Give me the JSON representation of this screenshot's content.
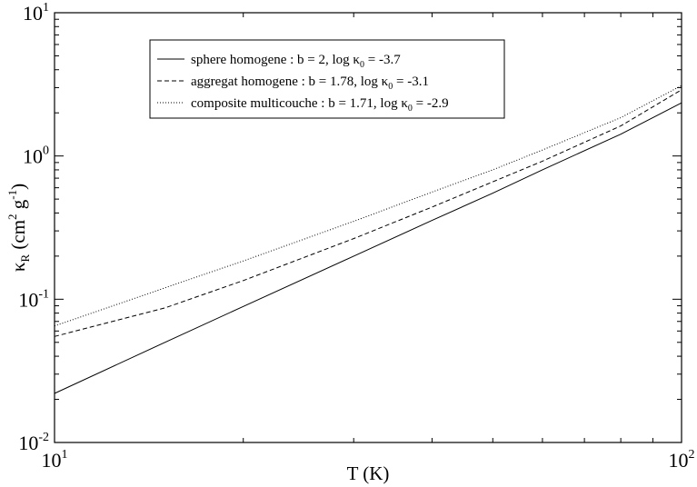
{
  "chart_data": {
    "type": "line",
    "x_scale": "log",
    "y_scale": "log",
    "xlim": [
      10,
      100
    ],
    "ylim": [
      0.01,
      10
    ],
    "xlabel": "T (K)",
    "ylabel": "κR (cm2 g-1)",
    "x_ticks": [
      {
        "value": 10,
        "base": "10",
        "exp": "1"
      },
      {
        "value": 100,
        "base": "10",
        "exp": "2"
      }
    ],
    "y_ticks": [
      {
        "value": 0.01,
        "base": "10",
        "exp": "-2"
      },
      {
        "value": 0.1,
        "base": "10",
        "exp": "-1"
      },
      {
        "value": 1,
        "base": "10",
        "exp": "0"
      },
      {
        "value": 10,
        "base": "10",
        "exp": "1"
      }
    ],
    "grid": false,
    "legend_position": "top-left",
    "series": [
      {
        "name": "sphere homogene : b = 2, log κ0 = -3.7",
        "style": "solid",
        "x": [
          10,
          15,
          20,
          30,
          40,
          50,
          60,
          80,
          100
        ],
        "y": [
          0.022,
          0.05,
          0.089,
          0.2,
          0.355,
          0.55,
          0.8,
          1.42,
          2.35
        ]
      },
      {
        "name": "aggregat homogene : b = 1.78, log κ0 = -3.1",
        "style": "dashed",
        "x": [
          10,
          15,
          20,
          30,
          40,
          50,
          60,
          80,
          100
        ],
        "y": [
          0.055,
          0.087,
          0.135,
          0.265,
          0.44,
          0.66,
          0.92,
          1.62,
          2.9
        ]
      },
      {
        "name": "composite multicouche : b = 1.71, log κ0 = -2.9",
        "style": "dotted",
        "x": [
          10,
          15,
          20,
          30,
          40,
          50,
          60,
          80,
          100
        ],
        "y": [
          0.065,
          0.12,
          0.185,
          0.35,
          0.56,
          0.8,
          1.1,
          1.85,
          3.1
        ]
      }
    ]
  },
  "legend": {
    "entries": [
      {
        "text": "sphere homogene : b = 2, log κ",
        "sub": "0",
        "tail": " = -3.7"
      },
      {
        "text": "aggregat homogene :  b = 1.78, log κ",
        "sub": "0",
        "tail": " = -3.1"
      },
      {
        "text": "composite multicouche :  b = 1.71, log κ",
        "sub": "0",
        "tail": " = -2.9"
      }
    ]
  },
  "labels": {
    "xlabel": "T (K)",
    "ylabel_kappa": "κ",
    "ylabel_sub": "R",
    "ylabel_open": " (cm",
    "ylabel_exp1": "2",
    "ylabel_mid": " g",
    "ylabel_exp2": "-1",
    "ylabel_close": ")"
  }
}
